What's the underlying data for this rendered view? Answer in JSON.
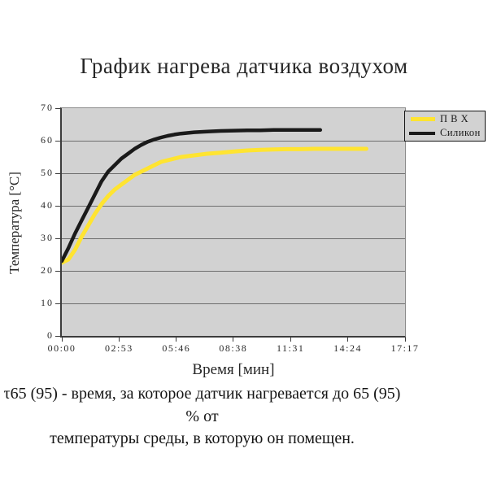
{
  "header": {
    "title": "График нагрева датчика воздухом"
  },
  "chart_data": {
    "type": "line",
    "title": "График нагрева датчика воздухом",
    "xlabel": "Время [мин]",
    "ylabel": "Температура [°C]",
    "xlim_seconds": [
      0,
      1037
    ],
    "ylim": [
      0,
      70
    ],
    "grid": "horizontal",
    "plot_background": "#d2d2d2",
    "gridline_color": "#6e6e6e",
    "legend_position": "top-right-outside",
    "x_ticks": [
      {
        "t": 0,
        "label": "00:00"
      },
      {
        "t": 173,
        "label": "02:53"
      },
      {
        "t": 346,
        "label": "05:46"
      },
      {
        "t": 518,
        "label": "08:38"
      },
      {
        "t": 691,
        "label": "11:31"
      },
      {
        "t": 864,
        "label": "14:24"
      },
      {
        "t": 1037,
        "label": "17:17"
      }
    ],
    "y_ticks": [
      0,
      10,
      20,
      30,
      40,
      50,
      60,
      70
    ],
    "series": [
      {
        "name": "П В Х",
        "color": "#ffe431",
        "stroke_width": 5,
        "points": [
          [
            0,
            22.5
          ],
          [
            20,
            23.5
          ],
          [
            40,
            26.5
          ],
          [
            60,
            30.5
          ],
          [
            80,
            34
          ],
          [
            100,
            37.5
          ],
          [
            120,
            40.5
          ],
          [
            140,
            43
          ],
          [
            160,
            45
          ],
          [
            180,
            46.5
          ],
          [
            200,
            48
          ],
          [
            220,
            49.5
          ],
          [
            240,
            50.5
          ],
          [
            260,
            51.5
          ],
          [
            280,
            52.5
          ],
          [
            300,
            53.5
          ],
          [
            320,
            54
          ],
          [
            340,
            54.5
          ],
          [
            360,
            55
          ],
          [
            400,
            55.5
          ],
          [
            440,
            56
          ],
          [
            480,
            56.3
          ],
          [
            520,
            56.7
          ],
          [
            560,
            57
          ],
          [
            600,
            57.2
          ],
          [
            640,
            57.3
          ],
          [
            680,
            57.4
          ],
          [
            720,
            57.4
          ],
          [
            760,
            57.5
          ],
          [
            800,
            57.5
          ],
          [
            840,
            57.5
          ],
          [
            880,
            57.5
          ],
          [
            920,
            57.5
          ]
        ]
      },
      {
        "name": "Силикон",
        "color": "#1a1a1a",
        "stroke_width": 4.5,
        "points": [
          [
            0,
            23
          ],
          [
            20,
            27
          ],
          [
            40,
            31.5
          ],
          [
            60,
            35.5
          ],
          [
            80,
            39.5
          ],
          [
            100,
            43.5
          ],
          [
            120,
            47.5
          ],
          [
            140,
            50.5
          ],
          [
            160,
            52.5
          ],
          [
            180,
            54.5
          ],
          [
            200,
            56
          ],
          [
            220,
            57.5
          ],
          [
            240,
            58.7
          ],
          [
            260,
            59.7
          ],
          [
            280,
            60.4
          ],
          [
            300,
            61
          ],
          [
            320,
            61.5
          ],
          [
            340,
            61.9
          ],
          [
            360,
            62.2
          ],
          [
            400,
            62.6
          ],
          [
            440,
            62.8
          ],
          [
            480,
            63
          ],
          [
            520,
            63.1
          ],
          [
            560,
            63.2
          ],
          [
            600,
            63.2
          ],
          [
            640,
            63.3
          ],
          [
            680,
            63.3
          ],
          [
            720,
            63.3
          ],
          [
            760,
            63.3
          ],
          [
            781,
            63.3
          ]
        ]
      }
    ]
  },
  "legend": {
    "items": [
      {
        "label": "П В Х",
        "color": "#ffe431"
      },
      {
        "label": "Силикон",
        "color": "#1a1a1a"
      }
    ]
  },
  "caption": {
    "line1": "τ65 (95) - время, за которое датчик нагревается до 65 (95) % от",
    "line2": "температуры среды, в которую он помещен."
  }
}
